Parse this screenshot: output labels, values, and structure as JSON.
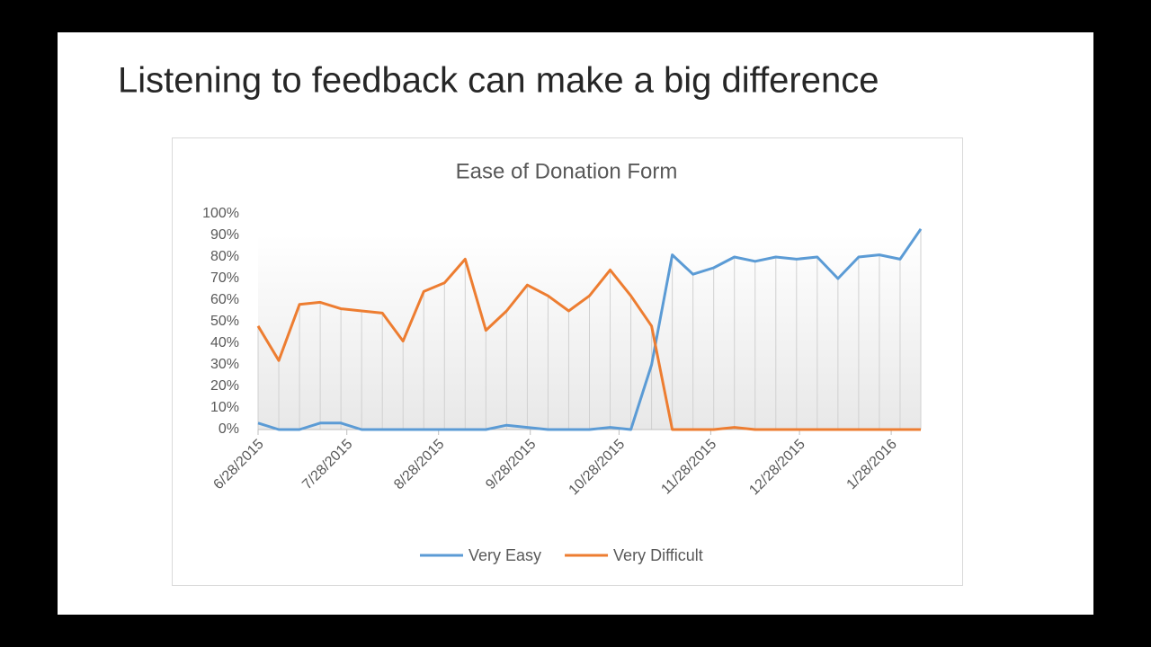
{
  "slide_title": "Listening to feedback can make a big difference",
  "chart_data": {
    "type": "line",
    "title": "Ease of Donation Form",
    "x": [
      "2015-06-28",
      "2015-07-05",
      "2015-07-12",
      "2015-07-19",
      "2015-07-26",
      "2015-08-02",
      "2015-08-09",
      "2015-08-16",
      "2015-08-23",
      "2015-08-30",
      "2015-09-06",
      "2015-09-13",
      "2015-09-20",
      "2015-09-27",
      "2015-10-04",
      "2015-10-11",
      "2015-10-18",
      "2015-10-25",
      "2015-11-01",
      "2015-11-08",
      "2015-11-15",
      "2015-11-22",
      "2015-11-29",
      "2015-12-06",
      "2015-12-13",
      "2015-12-20",
      "2015-12-27",
      "2016-01-03",
      "2016-01-10",
      "2016-01-17",
      "2016-01-24",
      "2016-01-31",
      "2016-02-07"
    ],
    "series": [
      {
        "name": "Very Easy",
        "color": "#5b9bd5",
        "values": [
          3,
          0,
          0,
          3,
          3,
          0,
          0,
          0,
          0,
          0,
          0,
          0,
          2,
          1,
          0,
          0,
          0,
          1,
          0,
          30,
          81,
          72,
          75,
          80,
          78,
          80,
          79,
          80,
          70,
          80,
          81,
          79,
          93
        ]
      },
      {
        "name": "Very Difficult",
        "color": "#ed7d31",
        "values": [
          48,
          32,
          58,
          59,
          56,
          55,
          54,
          41,
          64,
          68,
          79,
          46,
          55,
          67,
          62,
          55,
          62,
          74,
          62,
          48,
          0,
          0,
          0,
          1,
          0,
          0,
          0,
          0,
          0,
          0,
          0,
          0,
          0
        ]
      }
    ],
    "xlim": [
      "2015-06-28",
      "2016-02-07"
    ],
    "xticks": [
      {
        "value": "2015-06-28",
        "label": "6/28/2015"
      },
      {
        "value": "2015-07-28",
        "label": "7/28/2015"
      },
      {
        "value": "2015-08-28",
        "label": "8/28/2015"
      },
      {
        "value": "2015-09-28",
        "label": "9/28/2015"
      },
      {
        "value": "2015-10-28",
        "label": "10/28/2015"
      },
      {
        "value": "2015-11-28",
        "label": "11/28/2015"
      },
      {
        "value": "2015-12-28",
        "label": "12/28/2015"
      },
      {
        "value": "2016-01-28",
        "label": "1/28/2016"
      }
    ],
    "ylim": [
      0,
      100
    ],
    "yticks": [
      {
        "value": 0,
        "label": "0%"
      },
      {
        "value": 10,
        "label": "10%"
      },
      {
        "value": 20,
        "label": "20%"
      },
      {
        "value": 30,
        "label": "30%"
      },
      {
        "value": 40,
        "label": "40%"
      },
      {
        "value": 50,
        "label": "50%"
      },
      {
        "value": 60,
        "label": "60%"
      },
      {
        "value": 70,
        "label": "70%"
      },
      {
        "value": 80,
        "label": "80%"
      },
      {
        "value": 90,
        "label": "90%"
      },
      {
        "value": 100,
        "label": "100%"
      }
    ],
    "drop_lines": true,
    "legend": "bottom"
  }
}
